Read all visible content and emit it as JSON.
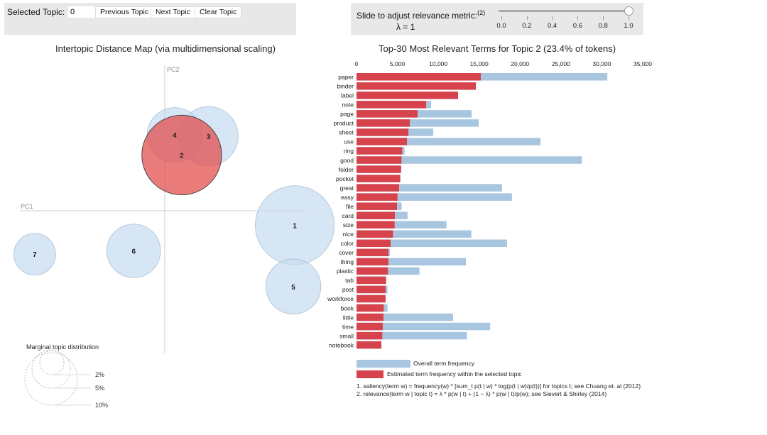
{
  "controls": {
    "selected_topic_label": "Selected Topic:",
    "selected_topic_value": "0",
    "previous_label": "Previous Topic",
    "next_label": "Next Topic",
    "clear_label": "Clear Topic",
    "slider_label": "Slide to adjust relevance metric:",
    "slider_footnote": "(2)",
    "lambda_text": "λ = 1",
    "lambda_value": 1,
    "slider_ticks": [
      "0.0",
      "0.2",
      "0.4",
      "0.6",
      "0.8",
      "1.0"
    ]
  },
  "colors": {
    "topic_fill": "#c6dbef",
    "selected_fill": "#e34a4a",
    "overall_bar": "#a9c6e0",
    "topic_bar": "#d6434c"
  },
  "chart_data": [
    {
      "type": "scatter",
      "title": "Intertopic Distance Map (via multidimensional scaling)",
      "xlabel": "PC1",
      "ylabel": "PC2",
      "selected_topic": 2,
      "topics": [
        {
          "id": "1",
          "x": 0.92,
          "y": -0.13,
          "size_pct": 23.0
        },
        {
          "id": "2",
          "x": 0.12,
          "y": 0.5,
          "size_pct": 23.4
        },
        {
          "id": "3",
          "x": 0.31,
          "y": 0.67,
          "size_pct": 12.9
        },
        {
          "id": "4",
          "x": 0.07,
          "y": 0.68,
          "size_pct": 11.1
        },
        {
          "id": "5",
          "x": 0.91,
          "y": -0.68,
          "size_pct": 11.2
        },
        {
          "id": "6",
          "x": -0.22,
          "y": -0.36,
          "size_pct": 10.6
        },
        {
          "id": "7",
          "x": -0.92,
          "y": -0.39,
          "size_pct": 6.4
        }
      ],
      "marginal_legend": {
        "title": "Marginal topic distribution",
        "levels": [
          "2%",
          "5%",
          "10%"
        ]
      }
    },
    {
      "type": "bar",
      "orientation": "horizontal",
      "title": "Top-30 Most Relevant Terms for Topic 2 (23.4% of tokens)",
      "xlim": [
        0,
        35000
      ],
      "xticks": [
        "0",
        "5,000",
        "10,000",
        "15,000",
        "20,000",
        "25,000",
        "30,000",
        "35,000"
      ],
      "xtick_values": [
        0,
        5000,
        10000,
        15000,
        20000,
        25000,
        30000,
        35000
      ],
      "categories": [
        "paper",
        "binder",
        "label",
        "note",
        "page",
        "product",
        "sheet",
        "use",
        "ring",
        "good",
        "folder",
        "pocket",
        "great",
        "easy",
        "file",
        "card",
        "size",
        "nice",
        "color",
        "cover",
        "thing",
        "plastic",
        "tab",
        "post",
        "workforce",
        "book",
        "little",
        "time",
        "small",
        "notebook"
      ],
      "series": [
        {
          "name": "Overall term frequency",
          "values": [
            30670,
            14600,
            12420,
            9120,
            14070,
            14940,
            9380,
            22500,
            5880,
            27540,
            5450,
            5390,
            17800,
            19010,
            5520,
            6240,
            11000,
            14040,
            18410,
            4080,
            13380,
            7700,
            3620,
            3790,
            3560,
            3790,
            11810,
            16350,
            13500,
            3040
          ]
        },
        {
          "name": "Estimated term frequency within the selected topic",
          "values": [
            15200,
            14600,
            12420,
            8520,
            7470,
            6520,
            6350,
            6170,
            5590,
            5500,
            5450,
            5330,
            5210,
            5010,
            4950,
            4690,
            4660,
            4460,
            4170,
            3910,
            3910,
            3850,
            3620,
            3560,
            3560,
            3330,
            3300,
            3210,
            3150,
            3040
          ]
        }
      ],
      "legend": [
        "Overall term frequency",
        "Estimated term frequency within the selected topic"
      ],
      "footnotes": [
        "1. saliency(term w) = frequency(w) * [sum_t p(t | w) * log(p(t | w)/p(t))] for topics t; see Chuang et. al (2012)",
        "2. relevance(term w | topic t) = λ * p(w | t) + (1 − λ) * p(w | t)/p(w); see Sievert & Shirley (2014)"
      ]
    }
  ]
}
